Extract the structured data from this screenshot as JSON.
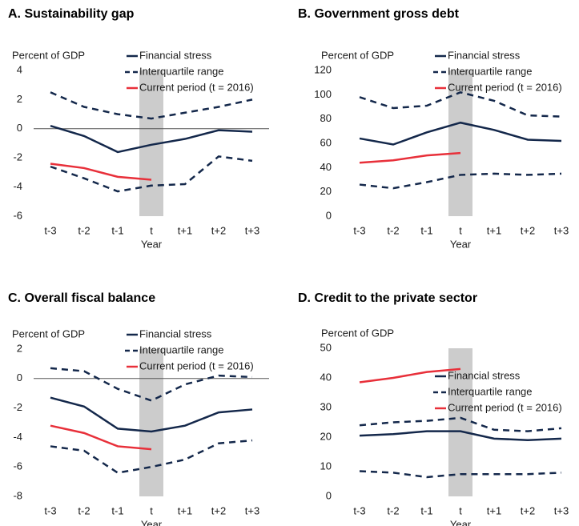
{
  "chart_data": [
    {
      "type": "line",
      "title": "A. Sustainability gap",
      "ylabel": "Percent of GDP",
      "xlabel": "Year",
      "categories": [
        "t-3",
        "t-2",
        "t-1",
        "t",
        "t+1",
        "t+2",
        "t+3"
      ],
      "ylim": [
        -6,
        4
      ],
      "yticks": [
        -6,
        -4,
        -2,
        0,
        2,
        4
      ],
      "zero_line": true,
      "highlight_category": "t",
      "legend_loc": "upper right",
      "series": [
        {
          "name": "Financial stress",
          "color": "#14284b",
          "style": "solid",
          "values": [
            0.2,
            -0.5,
            -1.6,
            -1.1,
            -0.7,
            -0.1,
            -0.2
          ]
        },
        {
          "name": "Interquartile range",
          "color": "#14284b",
          "style": "dashed",
          "high": [
            2.5,
            1.5,
            1.0,
            0.7,
            1.1,
            1.5,
            2.0
          ],
          "low": [
            -2.6,
            -3.4,
            -4.3,
            -3.9,
            -3.8,
            -1.9,
            -2.2
          ]
        },
        {
          "name": "Current period (t = 2016)",
          "color": "#e8303a",
          "style": "solid",
          "values": [
            -2.4,
            -2.7,
            -3.3,
            -3.5,
            null,
            null,
            null
          ]
        }
      ]
    },
    {
      "type": "line",
      "title": "B. Government gross debt",
      "ylabel": "Percent of GDP",
      "xlabel": "Year",
      "categories": [
        "t-3",
        "t-2",
        "t-1",
        "t",
        "t+1",
        "t+2",
        "t+3"
      ],
      "ylim": [
        0,
        120
      ],
      "yticks": [
        0,
        20,
        40,
        60,
        80,
        100,
        120
      ],
      "zero_line": false,
      "highlight_category": "t",
      "legend_loc": "upper right",
      "series": [
        {
          "name": "Financial stress",
          "color": "#14284b",
          "style": "solid",
          "values": [
            64,
            59,
            69,
            77,
            71,
            63,
            62
          ]
        },
        {
          "name": "Interquartile range",
          "color": "#14284b",
          "style": "dashed",
          "high": [
            98,
            89,
            91,
            102,
            95,
            83,
            82
          ],
          "low": [
            26,
            23,
            28,
            34,
            35,
            34,
            35
          ]
        },
        {
          "name": "Current period (t = 2016)",
          "color": "#e8303a",
          "style": "solid",
          "values": [
            44,
            46,
            50,
            52,
            null,
            null,
            null
          ]
        }
      ]
    },
    {
      "type": "line",
      "title": "C. Overall fiscal balance",
      "ylabel": "Percent of GDP",
      "xlabel": "Year",
      "categories": [
        "t-3",
        "t-2",
        "t-1",
        "t",
        "t+1",
        "t+2",
        "t+3"
      ],
      "ylim": [
        -8,
        2
      ],
      "yticks": [
        -8,
        -6,
        -4,
        -2,
        0,
        2
      ],
      "zero_line": true,
      "highlight_category": "t",
      "legend_loc": "upper right",
      "series": [
        {
          "name": "Financial stress",
          "color": "#14284b",
          "style": "solid",
          "values": [
            -1.3,
            -1.9,
            -3.4,
            -3.6,
            -3.2,
            -2.3,
            -2.1
          ]
        },
        {
          "name": "Interquartile range",
          "color": "#14284b",
          "style": "dashed",
          "high": [
            0.7,
            0.5,
            -0.7,
            -1.5,
            -0.4,
            0.2,
            0.1
          ],
          "low": [
            -4.6,
            -4.9,
            -6.4,
            -6.0,
            -5.5,
            -4.4,
            -4.2
          ]
        },
        {
          "name": "Current period (t = 2016)",
          "color": "#e8303a",
          "style": "solid",
          "values": [
            -3.2,
            -3.7,
            -4.6,
            -4.8,
            null,
            null,
            null
          ]
        }
      ]
    },
    {
      "type": "line",
      "title": "D. Credit to the private sector",
      "ylabel": "Percent of GDP",
      "xlabel": "Year",
      "categories": [
        "t-3",
        "t-2",
        "t-1",
        "t",
        "t+1",
        "t+2",
        "t+3"
      ],
      "ylim": [
        0,
        50
      ],
      "yticks": [
        0,
        10,
        20,
        30,
        40,
        50
      ],
      "zero_line": false,
      "highlight_category": "t",
      "legend_loc": "center right",
      "series": [
        {
          "name": "Financial stress",
          "color": "#14284b",
          "style": "solid",
          "values": [
            20.5,
            21,
            22,
            22,
            19.5,
            19,
            19.5
          ]
        },
        {
          "name": "Interquartile range",
          "color": "#14284b",
          "style": "dashed",
          "high": [
            24,
            25,
            25.5,
            26.5,
            22.5,
            22,
            23
          ],
          "low": [
            8.5,
            8,
            6.5,
            7.5,
            7.5,
            7.5,
            8
          ]
        },
        {
          "name": "Current period (t = 2016)",
          "color": "#e8303a",
          "style": "solid",
          "values": [
            38.5,
            40,
            42,
            43,
            null,
            null,
            null
          ]
        }
      ]
    }
  ]
}
